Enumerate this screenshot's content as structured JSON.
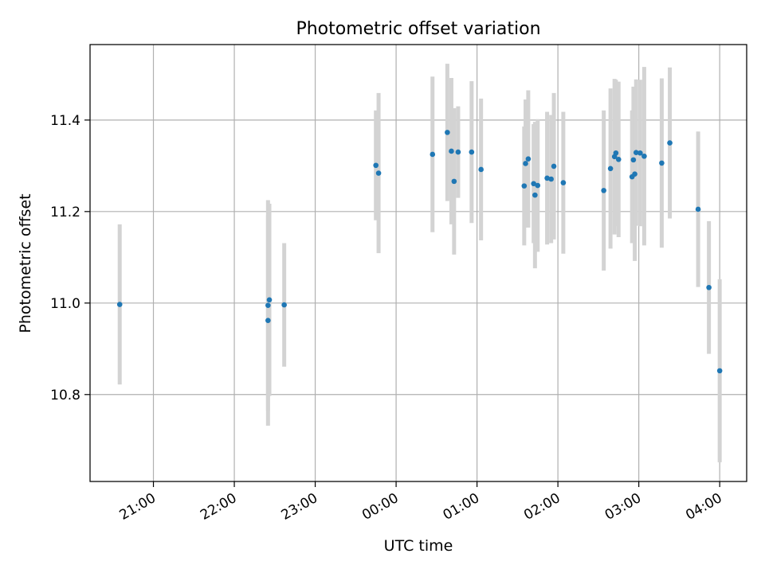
{
  "chart_data": {
    "type": "scatter",
    "title": "Photometric offset variation",
    "xlabel": "UTC time",
    "ylabel": "Photometric offset",
    "x_scale": "time",
    "xlim": [
      "20:13",
      "04:20"
    ],
    "ylim": [
      10.61,
      11.565
    ],
    "x_ticks": [
      "21:00",
      "22:00",
      "23:00",
      "00:00",
      "01:00",
      "02:00",
      "03:00",
      "04:00"
    ],
    "y_ticks": [
      "10.8",
      "11.0",
      "11.2",
      "11.4"
    ],
    "grid": true,
    "legend": "none",
    "colors": {
      "points": "#1f77b4",
      "errorbars": "#d3d3d3",
      "grid": "#b0b0b0"
    },
    "series": [
      {
        "x": [
          "20:35",
          "22:25",
          "22:25",
          "22:26",
          "22:37",
          "23:45",
          "23:47",
          "00:27",
          "00:38",
          "00:41",
          "00:43",
          "00:46",
          "00:56",
          "01:03",
          "01:35",
          "01:36",
          "01:38",
          "01:42",
          "01:43",
          "01:45",
          "01:52",
          "01:55",
          "01:57",
          "02:04",
          "02:34",
          "02:39",
          "02:42",
          "02:43",
          "02:45",
          "02:55",
          "02:56",
          "02:57",
          "02:58",
          "03:01",
          "03:04",
          "03:17",
          "03:23",
          "03:44",
          "03:52",
          "04:00"
        ],
        "y": [
          10.997,
          10.962,
          10.995,
          11.007,
          10.996,
          11.301,
          11.284,
          11.325,
          11.373,
          11.332,
          11.266,
          11.33,
          11.33,
          11.292,
          11.256,
          11.305,
          11.315,
          11.261,
          11.236,
          11.257,
          11.273,
          11.271,
          11.299,
          11.263,
          11.246,
          11.294,
          11.32,
          11.328,
          11.314,
          11.276,
          11.313,
          11.282,
          11.329,
          11.328,
          11.321,
          11.306,
          11.35,
          11.205,
          11.034,
          10.852
        ],
        "err": [
          0.175,
          0.23,
          0.23,
          0.21,
          0.135,
          0.12,
          0.175,
          0.17,
          0.15,
          0.16,
          0.16,
          0.1,
          0.155,
          0.155,
          0.13,
          0.14,
          0.15,
          0.13,
          0.16,
          0.145,
          0.145,
          0.14,
          0.16,
          0.155,
          0.175,
          0.175,
          0.17,
          0.16,
          0.17,
          0.145,
          0.16,
          0.19,
          0.16,
          0.16,
          0.195,
          0.185,
          0.165,
          0.17,
          0.145,
          0.2
        ]
      }
    ]
  }
}
